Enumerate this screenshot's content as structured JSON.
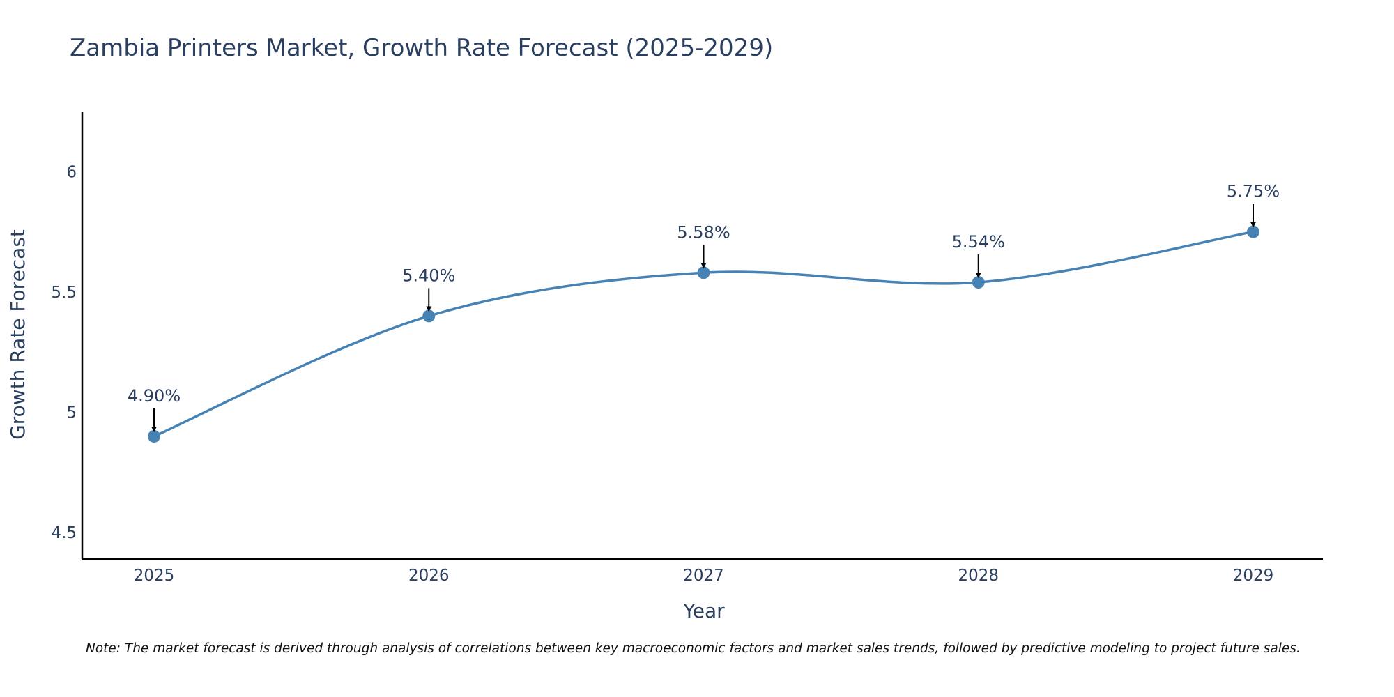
{
  "chart_data": {
    "type": "line",
    "title": "Zambia Printers Market, Growth Rate Forecast (2025-2029)",
    "xlabel": "Year",
    "ylabel": "Growth Rate Forecast",
    "categories": [
      "2025",
      "2026",
      "2027",
      "2028",
      "2029"
    ],
    "series": [
      {
        "name": "Growth Rate Forecast",
        "values": [
          4.9,
          5.4,
          5.58,
          5.54,
          5.75
        ],
        "labels": [
          "4.90%",
          "5.40%",
          "5.58%",
          "5.54%",
          "5.75%"
        ]
      }
    ],
    "yticks": [
      "4.5",
      "5",
      "5.5",
      "6"
    ],
    "ylim": [
      4.39,
      6.25
    ],
    "grid": false,
    "line_shape": "spline",
    "line_color": "#4682b4",
    "axis_color": "#000000",
    "annotation_arrow_color": "#000000"
  },
  "note": "Note: The market forecast is derived through analysis of correlations between key macroeconomic factors and market sales trends, followed by predictive modeling to project future sales."
}
